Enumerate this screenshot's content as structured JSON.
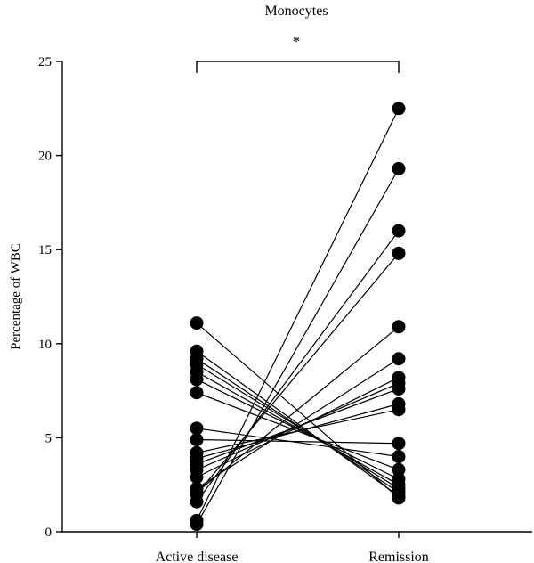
{
  "chart_data": {
    "type": "scatter",
    "title": "Monocytes",
    "ylabel": "Percentage of WBC",
    "xlabel": "",
    "categories": [
      "Active disease",
      "Remission"
    ],
    "ylim": [
      0,
      25
    ],
    "yticks": [
      0,
      5,
      10,
      15,
      20,
      25
    ],
    "significance": "*",
    "grid": false,
    "pairs": [
      {
        "active": 0.4,
        "remission": 19.3
      },
      {
        "active": 0.6,
        "remission": 22.5
      },
      {
        "active": 1.6,
        "remission": 16.0
      },
      {
        "active": 2.0,
        "remission": 14.8
      },
      {
        "active": 2.1,
        "remission": 10.9
      },
      {
        "active": 2.3,
        "remission": 9.2
      },
      {
        "active": 2.9,
        "remission": 8.2
      },
      {
        "active": 3.3,
        "remission": 7.9
      },
      {
        "active": 3.6,
        "remission": 7.6
      },
      {
        "active": 3.9,
        "remission": 6.8
      },
      {
        "active": 4.2,
        "remission": 6.5
      },
      {
        "active": 4.9,
        "remission": 4.7
      },
      {
        "active": 5.5,
        "remission": 4.0
      },
      {
        "active": 7.4,
        "remission": 3.3
      },
      {
        "active": 8.1,
        "remission": 2.8
      },
      {
        "active": 8.5,
        "remission": 2.5
      },
      {
        "active": 8.9,
        "remission": 2.3
      },
      {
        "active": 9.2,
        "remission": 2.1
      },
      {
        "active": 9.6,
        "remission": 1.9
      },
      {
        "active": 11.1,
        "remission": 1.8
      }
    ]
  }
}
